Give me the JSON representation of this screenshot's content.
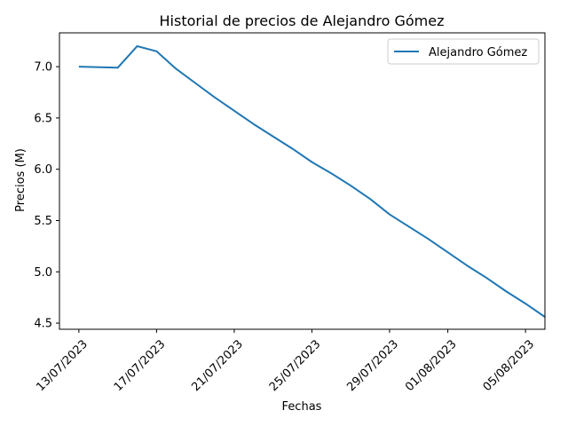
{
  "chart_data": {
    "type": "line",
    "title": "Historial de precios de Alejandro Gómez",
    "xlabel": "Fechas",
    "ylabel": "Precios (M)",
    "x_tick_labels": [
      "13/07/2023",
      "17/07/2023",
      "21/07/2023",
      "25/07/2023",
      "29/07/2023",
      "01/08/2023",
      "05/08/2023"
    ],
    "x_tick_dates": [
      "2023-07-13",
      "2023-07-17",
      "2023-07-21",
      "2023-07-25",
      "2023-07-29",
      "2023-08-01",
      "2023-08-05"
    ],
    "xlim": [
      "2023-07-12",
      "2023-08-06"
    ],
    "ylim": [
      4.44,
      7.33
    ],
    "y_ticks": [
      4.5,
      5.0,
      5.5,
      6.0,
      6.5,
      7.0
    ],
    "grid": false,
    "legend": "top-right",
    "color": "#1f77b4",
    "series": [
      {
        "name": "Alejandro Gómez",
        "points": [
          {
            "x": "2023-07-13",
            "y": 7.0
          },
          {
            "x": "2023-07-15",
            "y": 6.99
          },
          {
            "x": "2023-07-16",
            "y": 7.2
          },
          {
            "x": "2023-07-17",
            "y": 7.15
          },
          {
            "x": "2023-07-18",
            "y": 6.98
          },
          {
            "x": "2023-07-19",
            "y": 6.84
          },
          {
            "x": "2023-07-20",
            "y": 6.7
          },
          {
            "x": "2023-07-21",
            "y": 6.57
          },
          {
            "x": "2023-07-22",
            "y": 6.44
          },
          {
            "x": "2023-07-23",
            "y": 6.32
          },
          {
            "x": "2023-07-24",
            "y": 6.2
          },
          {
            "x": "2023-07-25",
            "y": 6.07
          },
          {
            "x": "2023-07-26",
            "y": 5.96
          },
          {
            "x": "2023-07-27",
            "y": 5.84
          },
          {
            "x": "2023-07-28",
            "y": 5.71
          },
          {
            "x": "2023-07-29",
            "y": 5.56
          },
          {
            "x": "2023-07-30",
            "y": 5.44
          },
          {
            "x": "2023-07-31",
            "y": 5.32
          },
          {
            "x": "2023-08-01",
            "y": 5.19
          },
          {
            "x": "2023-08-02",
            "y": 5.06
          },
          {
            "x": "2023-08-03",
            "y": 4.94
          },
          {
            "x": "2023-08-04",
            "y": 4.81
          },
          {
            "x": "2023-08-05",
            "y": 4.69
          },
          {
            "x": "2023-08-06",
            "y": 4.56
          }
        ]
      }
    ]
  }
}
